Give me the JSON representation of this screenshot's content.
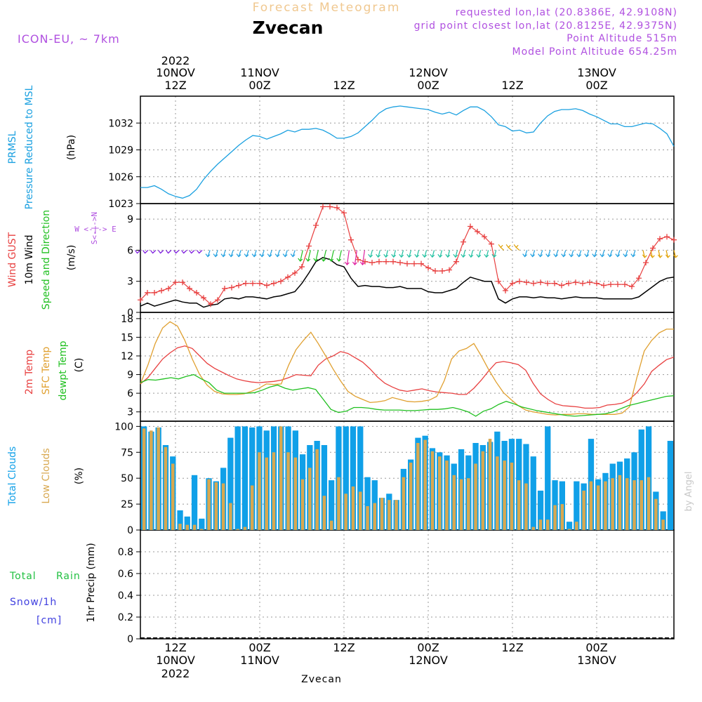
{
  "header": {
    "subtitle": "Forecast Meteogram",
    "location": "Zvecan",
    "model": "ICON-EU, ~ 7km",
    "requested": "requested lon,lat (20.8386E, 42.9108N)",
    "gridpoint": "grid point closest lon,lat (20.8125E, 42.9375N)",
    "point_alt": "Point Altitude 515m",
    "model_alt": "Model Point Altitude 654.25m",
    "footer": "Zvecan",
    "watermark": "by Angel"
  },
  "time_axis": {
    "top_labels": [
      {
        "line1": "2022",
        "line2": "10NOV",
        "line3": "12Z",
        "hour": 12
      },
      {
        "line1": "",
        "line2": "11NOV",
        "line3": "00Z",
        "hour": 24
      },
      {
        "line1": "",
        "line2": "",
        "line3": "12Z",
        "hour": 36
      },
      {
        "line1": "",
        "line2": "12NOV",
        "line3": "00Z",
        "hour": 48
      },
      {
        "line1": "",
        "line2": "",
        "line3": "12Z",
        "hour": 60
      },
      {
        "line1": "",
        "line2": "13NOV",
        "line3": "00Z",
        "hour": 72
      }
    ],
    "bottom_labels": [
      {
        "line1": "12Z",
        "line2": "10NOV",
        "line3": "2022",
        "hour": 12
      },
      {
        "line1": "00Z",
        "line2": "11NOV",
        "line3": "",
        "hour": 24
      },
      {
        "line1": "12Z",
        "line2": "",
        "line3": "",
        "hour": 36
      },
      {
        "line1": "00Z",
        "line2": "12NOV",
        "line3": "",
        "hour": 48
      },
      {
        "line1": "12Z",
        "line2": "",
        "line3": "",
        "hour": 60
      },
      {
        "line1": "00Z",
        "line2": "13NOV",
        "line3": "",
        "hour": 72
      }
    ],
    "start_hour": 7,
    "end_hour": 83
  },
  "panels_labels": {
    "pressure": {
      "l1": "PRMSL",
      "l2": "Pressure Reduced to MSL",
      "unit": "(hPa)"
    },
    "wind": {
      "l1": "Wind GUST",
      "l2": "10m Wind",
      "l3": "Speed and Direction",
      "unit": "(m/s)",
      "compass_we": "W <-|-> E",
      "compass_sn": "S<-|->N"
    },
    "temp": {
      "l1": "2m Temp",
      "l2": "SFC Temp",
      "l3": "dewpt Temp",
      "unit": "(C)"
    },
    "clouds": {
      "l1": "Total Clouds",
      "l2": "Low Clouds",
      "unit": "(%)"
    },
    "precip": {
      "l1": "Total",
      "l1b": "Rain",
      "l2": "Snow/1h",
      "l3": "[cm]",
      "unit": "1hr Precip (mm)"
    }
  },
  "colors": {
    "pressure": "#1aa0e0",
    "gust": "#e84040",
    "wind": "#000000",
    "sfc": "#e0a030",
    "t2m": "#e84040",
    "dew": "#20c020",
    "total_clouds": "#10a0e8",
    "low_clouds": "#d8a850",
    "purple": "#b050e0",
    "green": "#20c040",
    "blue": "#4040e0",
    "title_orange": "#f0c890"
  },
  "chart_data": [
    {
      "type": "line",
      "title": "PRMSL Pressure Reduced to MSL",
      "ylabel": "hPa",
      "ylim": [
        1023,
        1035
      ],
      "yticks": [
        1023,
        1026,
        1029,
        1032
      ],
      "series": [
        {
          "name": "PRMSL",
          "x": [
            7,
            8,
            9,
            10,
            11,
            12,
            13,
            14,
            15,
            16,
            17,
            18,
            19,
            20,
            21,
            22,
            23,
            24,
            25,
            26,
            27,
            28,
            29,
            30,
            31,
            32,
            33,
            34,
            35,
            36,
            37,
            38,
            39,
            40,
            41,
            42,
            43,
            44,
            45,
            46,
            47,
            48,
            49,
            50,
            51,
            52,
            53,
            54,
            55,
            56,
            57,
            58,
            59,
            60,
            61,
            62,
            63,
            64,
            65,
            66,
            67,
            68,
            69,
            70,
            71,
            72,
            73,
            74,
            75,
            76,
            77,
            78,
            79,
            80,
            81,
            82,
            83
          ],
          "values": [
            1024.8,
            1024.8,
            1025.0,
            1024.6,
            1024.1,
            1023.8,
            1023.6,
            1023.9,
            1024.6,
            1025.7,
            1026.6,
            1027.4,
            1028.1,
            1028.8,
            1029.5,
            1030.1,
            1030.6,
            1030.5,
            1030.2,
            1030.5,
            1030.8,
            1031.2,
            1031.0,
            1031.3,
            1031.3,
            1031.4,
            1031.2,
            1030.8,
            1030.3,
            1030.3,
            1030.5,
            1030.9,
            1031.6,
            1032.3,
            1033.1,
            1033.6,
            1033.8,
            1033.9,
            1033.8,
            1033.7,
            1033.6,
            1033.5,
            1033.2,
            1033.0,
            1033.2,
            1032.9,
            1033.4,
            1033.8,
            1033.8,
            1033.4,
            1032.7,
            1031.8,
            1031.6,
            1031.1,
            1031.2,
            1030.9,
            1031.0,
            1032.0,
            1032.8,
            1033.3,
            1033.5,
            1033.5,
            1033.6,
            1033.4,
            1033.0,
            1032.7,
            1032.3,
            1031.9,
            1031.9,
            1031.6,
            1031.6,
            1031.8,
            1032.0,
            1031.9,
            1031.4,
            1030.8,
            1029.4
          ]
        }
      ]
    },
    {
      "type": "line",
      "title": "Wind GUST / 10m Wind Speed and Direction",
      "ylabel": "m/s",
      "ylim": [
        0,
        10.5
      ],
      "yticks": [
        0,
        3,
        6,
        9
      ],
      "series": [
        {
          "name": "Wind GUST",
          "values": [
            1.2,
            1.9,
            1.9,
            2.1,
            2.3,
            2.9,
            2.9,
            2.3,
            1.9,
            1.4,
            0.8,
            1.2,
            2.3,
            2.4,
            2.6,
            2.8,
            2.8,
            2.8,
            2.6,
            2.8,
            3.0,
            3.4,
            3.8,
            4.4,
            6.4,
            8.4,
            10.2,
            10.2,
            10.1,
            9.6,
            7.0,
            5.1,
            4.9,
            4.8,
            4.9,
            4.9,
            4.9,
            4.8,
            4.7,
            4.7,
            4.7,
            4.3,
            4.0,
            4.0,
            4.1,
            4.9,
            6.8,
            8.3,
            7.8,
            7.3,
            6.6,
            3.0,
            2.1,
            2.8,
            3.0,
            2.9,
            2.8,
            2.9,
            2.8,
            2.8,
            2.6,
            2.8,
            2.9,
            2.8,
            2.9,
            2.8,
            2.6,
            2.7,
            2.7,
            2.7,
            2.5,
            3.3,
            4.8,
            6.2,
            7.1,
            7.3,
            7.0
          ]
        },
        {
          "name": "10m Wind",
          "values": [
            0.6,
            0.9,
            0.6,
            0.8,
            1.0,
            1.2,
            1.0,
            0.9,
            0.9,
            0.5,
            0.7,
            0.8,
            1.3,
            1.4,
            1.3,
            1.5,
            1.5,
            1.4,
            1.3,
            1.5,
            1.6,
            1.8,
            2.0,
            2.8,
            3.8,
            4.9,
            5.3,
            5.1,
            4.6,
            4.4,
            3.3,
            2.5,
            2.6,
            2.5,
            2.5,
            2.4,
            2.4,
            2.5,
            2.3,
            2.3,
            2.3,
            2.0,
            1.9,
            1.9,
            2.1,
            2.3,
            2.9,
            3.4,
            3.2,
            3.0,
            3.0,
            1.3,
            0.9,
            1.3,
            1.5,
            1.5,
            1.4,
            1.5,
            1.4,
            1.4,
            1.3,
            1.4,
            1.5,
            1.4,
            1.4,
            1.4,
            1.3,
            1.3,
            1.3,
            1.3,
            1.3,
            1.5,
            2.0,
            2.5,
            3.0,
            3.3,
            3.4
          ]
        }
      ]
    },
    {
      "type": "line",
      "title": "2m Temp / SFC Temp / dewpt Temp",
      "ylabel": "C",
      "ylim": [
        1.5,
        19
      ],
      "yticks": [
        3,
        6,
        9,
        12,
        15,
        18
      ],
      "series": [
        {
          "name": "2m Temp",
          "values": [
            7.5,
            8.5,
            10.0,
            11.5,
            12.5,
            13.3,
            13.6,
            13.2,
            12.0,
            10.8,
            10.0,
            9.4,
            8.8,
            8.3,
            8.0,
            7.8,
            7.7,
            7.8,
            7.9,
            8.1,
            8.5,
            9.0,
            8.9,
            8.8,
            10.5,
            11.5,
            12.0,
            12.7,
            12.4,
            11.7,
            11.0,
            9.9,
            8.6,
            7.6,
            7.0,
            6.5,
            6.3,
            6.5,
            6.7,
            6.4,
            6.2,
            6.1,
            6.0,
            5.8,
            5.8,
            6.8,
            8.1,
            9.6,
            10.9,
            11.1,
            10.9,
            10.6,
            9.7,
            7.6,
            5.9,
            5.0,
            4.3,
            4.0,
            3.9,
            3.8,
            3.6,
            3.6,
            3.7,
            4.1,
            4.2,
            4.4,
            5.0,
            6.1,
            7.5,
            9.5,
            10.5,
            11.4,
            11.8
          ]
        },
        {
          "name": "SFC Temp",
          "values": [
            7.5,
            10.5,
            14.0,
            16.5,
            17.5,
            16.8,
            14.5,
            11.5,
            9.0,
            7.3,
            6.3,
            5.9,
            5.8,
            5.8,
            5.9,
            6.3,
            6.8,
            7.5,
            7.4,
            7.5,
            10.5,
            13.0,
            14.5,
            15.8,
            14.0,
            12.0,
            9.9,
            8.0,
            6.3,
            5.5,
            5.0,
            4.5,
            4.6,
            4.8,
            5.3,
            5.0,
            4.7,
            4.6,
            4.7,
            4.9,
            5.5,
            8.0,
            11.5,
            12.8,
            13.2,
            14.0,
            12.0,
            9.8,
            7.8,
            6.1,
            5.0,
            4.0,
            3.3,
            3.0,
            2.8,
            2.6,
            2.5,
            2.6,
            2.6,
            2.7,
            2.7,
            2.6,
            2.6,
            2.6,
            2.6,
            2.8,
            3.8,
            8.5,
            12.8,
            14.5,
            15.7,
            16.3,
            16.3
          ]
        },
        {
          "name": "dewpt Temp",
          "values": [
            7.7,
            8.2,
            8.1,
            8.3,
            8.5,
            8.3,
            8.7,
            9.0,
            8.3,
            7.7,
            6.5,
            6.0,
            6.0,
            6.0,
            6.0,
            6.1,
            6.5,
            7.0,
            7.3,
            6.8,
            6.5,
            6.7,
            6.9,
            6.6,
            5.0,
            3.4,
            2.9,
            3.1,
            3.7,
            3.7,
            3.6,
            3.4,
            3.3,
            3.3,
            3.3,
            3.2,
            3.2,
            3.3,
            3.4,
            3.4,
            3.5,
            3.7,
            3.4,
            3.0,
            2.3,
            3.1,
            3.5,
            4.2,
            4.7,
            4.3,
            3.8,
            3.5,
            3.2,
            3.0,
            2.8,
            2.6,
            2.4,
            2.3,
            2.4,
            2.5,
            2.6,
            2.7,
            3.0,
            3.5,
            4.0,
            4.3,
            4.6,
            4.9,
            5.2,
            5.5,
            5.6
          ]
        }
      ]
    },
    {
      "type": "bar",
      "title": "Total Clouds / Low Clouds",
      "ylabel": "%",
      "ylim": [
        0,
        105
      ],
      "yticks": [
        0,
        25,
        50,
        75,
        100
      ],
      "series": [
        {
          "name": "Total Clouds",
          "values": [
            100,
            95,
            99,
            82,
            71,
            19,
            13,
            53,
            11,
            50,
            47,
            60,
            89,
            100,
            100,
            99,
            100,
            96,
            100,
            100,
            100,
            96,
            73,
            82,
            86,
            82,
            48,
            100,
            100,
            100,
            100,
            51,
            48,
            31,
            35,
            29,
            59,
            68,
            89,
            91,
            79,
            75,
            72,
            64,
            78,
            72,
            84,
            82,
            85,
            95,
            86,
            88,
            88,
            83,
            71,
            38,
            100,
            48,
            47,
            8,
            47,
            45,
            88,
            49,
            55,
            64,
            66,
            69,
            75,
            97,
            100,
            37,
            18,
            86
          ],
          "low": [
            98,
            96,
            99,
            80,
            64,
            6,
            5,
            5,
            1,
            49,
            46,
            45,
            26,
            1,
            3,
            43,
            75,
            70,
            75,
            100,
            75,
            70,
            49,
            60,
            78,
            33,
            9,
            51,
            35,
            42,
            37,
            23,
            26,
            31,
            29,
            29,
            51,
            65,
            84,
            87,
            76,
            71,
            67,
            53,
            49,
            50,
            64,
            76,
            88,
            71,
            67,
            65,
            48,
            45,
            3,
            10,
            10,
            24,
            25,
            1,
            8,
            38,
            47,
            43,
            47,
            50,
            53,
            50,
            48,
            48,
            51,
            30,
            10,
            0
          ]
        }
      ]
    },
    {
      "type": "bar",
      "title": "1hr Precip",
      "ylabel": "mm",
      "ylim": [
        0,
        1
      ],
      "yticks": [
        0,
        0.2,
        0.4,
        0.6,
        0.8
      ],
      "series": [
        {
          "name": "Total Rain",
          "values": []
        },
        {
          "name": "Snow/1h",
          "values": []
        }
      ]
    }
  ]
}
